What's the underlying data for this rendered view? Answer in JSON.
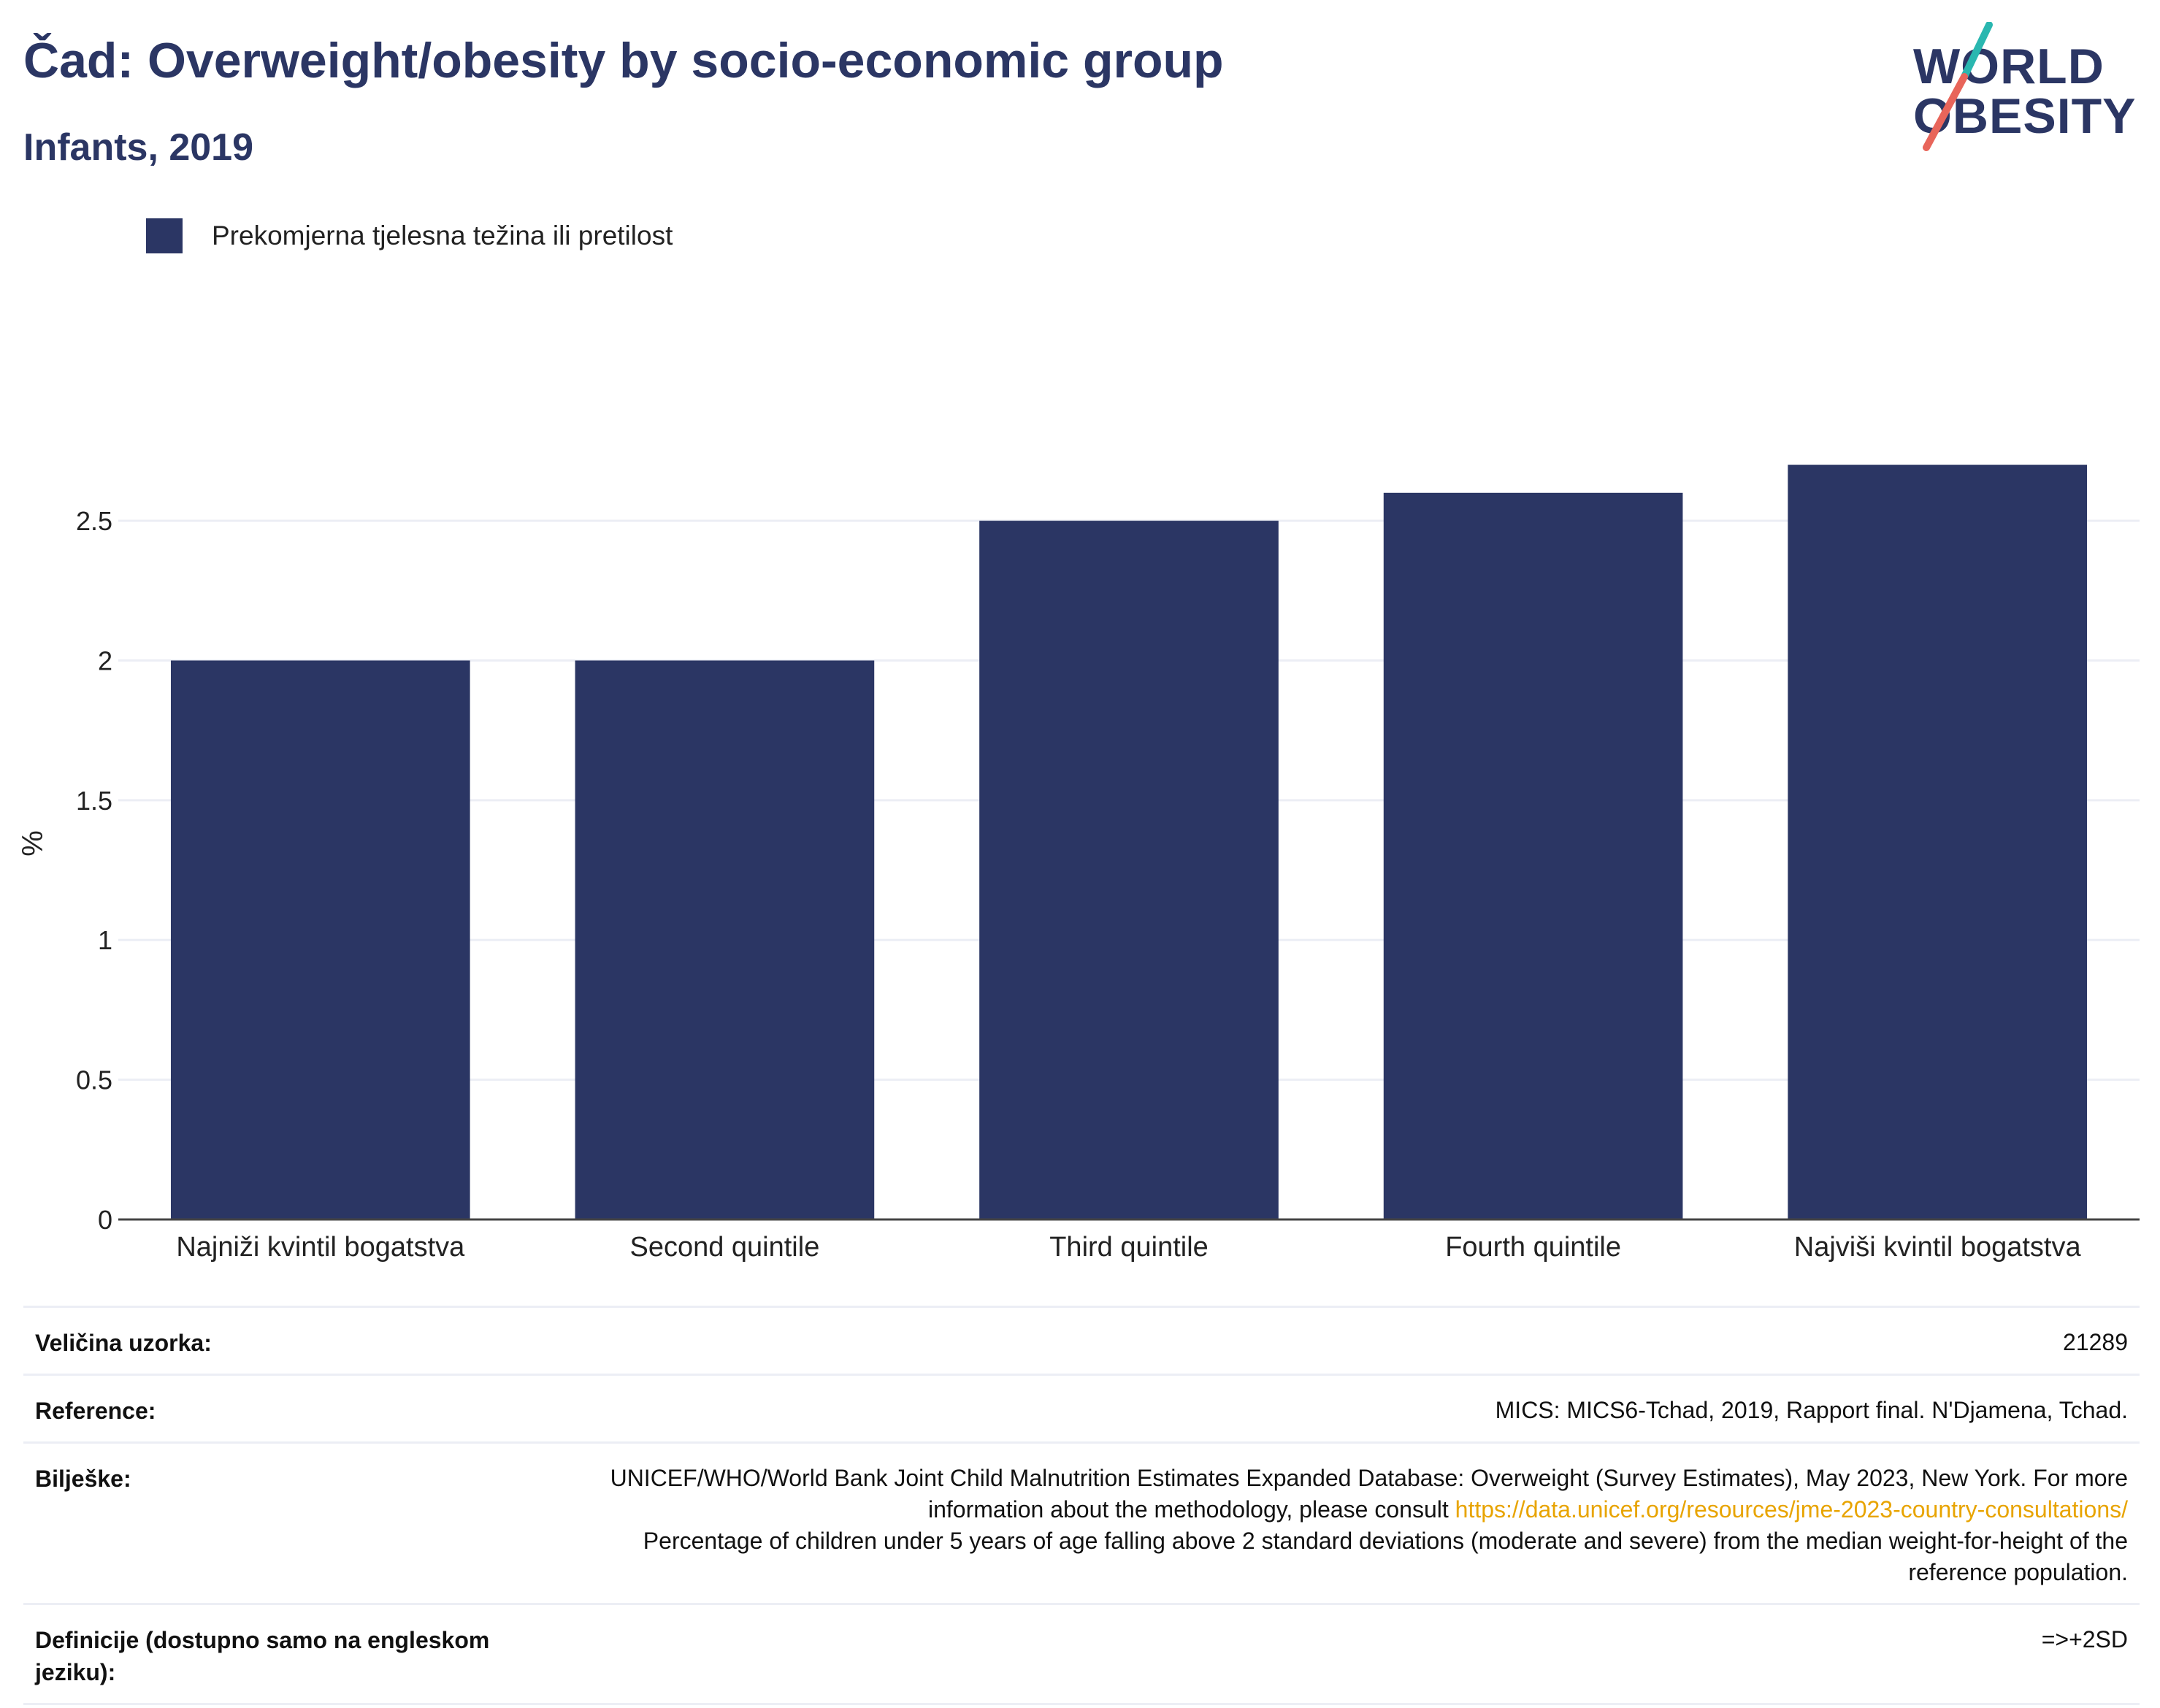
{
  "header": {
    "title": "Čad: Overweight/obesity by socio-economic group",
    "subtitle": "Infants, 2019"
  },
  "logo": {
    "line1": "WORLD",
    "line2": "OBESITY",
    "colors": {
      "text": "#2b3664",
      "slash_top": "#2ab7b0",
      "slash_bottom": "#e8655a"
    }
  },
  "legend": {
    "label": "Prekomjerna tjelesna težina ili pretilost",
    "color": "#2b3664"
  },
  "chart_data": {
    "type": "bar",
    "categories": [
      "Najniži kvintil bogatstva",
      "Second quintile",
      "Third quintile",
      "Fourth quintile",
      "Najviši kvintil bogatstva"
    ],
    "series": [
      {
        "name": "Prekomjerna tjelesna težina ili pretilost",
        "values": [
          2.0,
          2.0,
          2.5,
          2.6,
          2.7
        ],
        "color": "#2b3664"
      }
    ],
    "ylabel": "%",
    "xlabel": "",
    "ylim": [
      0,
      2.9
    ],
    "yticks": [
      0,
      0.5,
      1,
      1.5,
      2,
      2.5
    ],
    "ytick_labels": [
      "0",
      "0.5",
      "1",
      "1.5",
      "2",
      "2.5"
    ],
    "grid": true,
    "legend_position": "top-left"
  },
  "info": {
    "sample_size_label": "Veličina uzorka:",
    "sample_size_value": "21289",
    "reference_label": "Reference:",
    "reference_value": "MICS: MICS6-Tchad, 2019, Rapport final. N'Djamena, Tchad.",
    "notes_label": "Bilješke:",
    "notes_text_1": "UNICEF/WHO/World Bank Joint Child Malnutrition Estimates Expanded Database: Overweight (Survey Estimates), May 2023, New York. For more information about the methodology, please consult",
    "notes_link": "https://data.unicef.org/resources/jme-2023-country-consultations/",
    "notes_text_2": "Percentage of children under 5 years of age falling above 2 standard deviations (moderate and severe) from the median weight-for-height of the reference population.",
    "definitions_label": "Definicije (dostupno samo na engleskom jeziku):",
    "definitions_value": "=>+2SD"
  }
}
